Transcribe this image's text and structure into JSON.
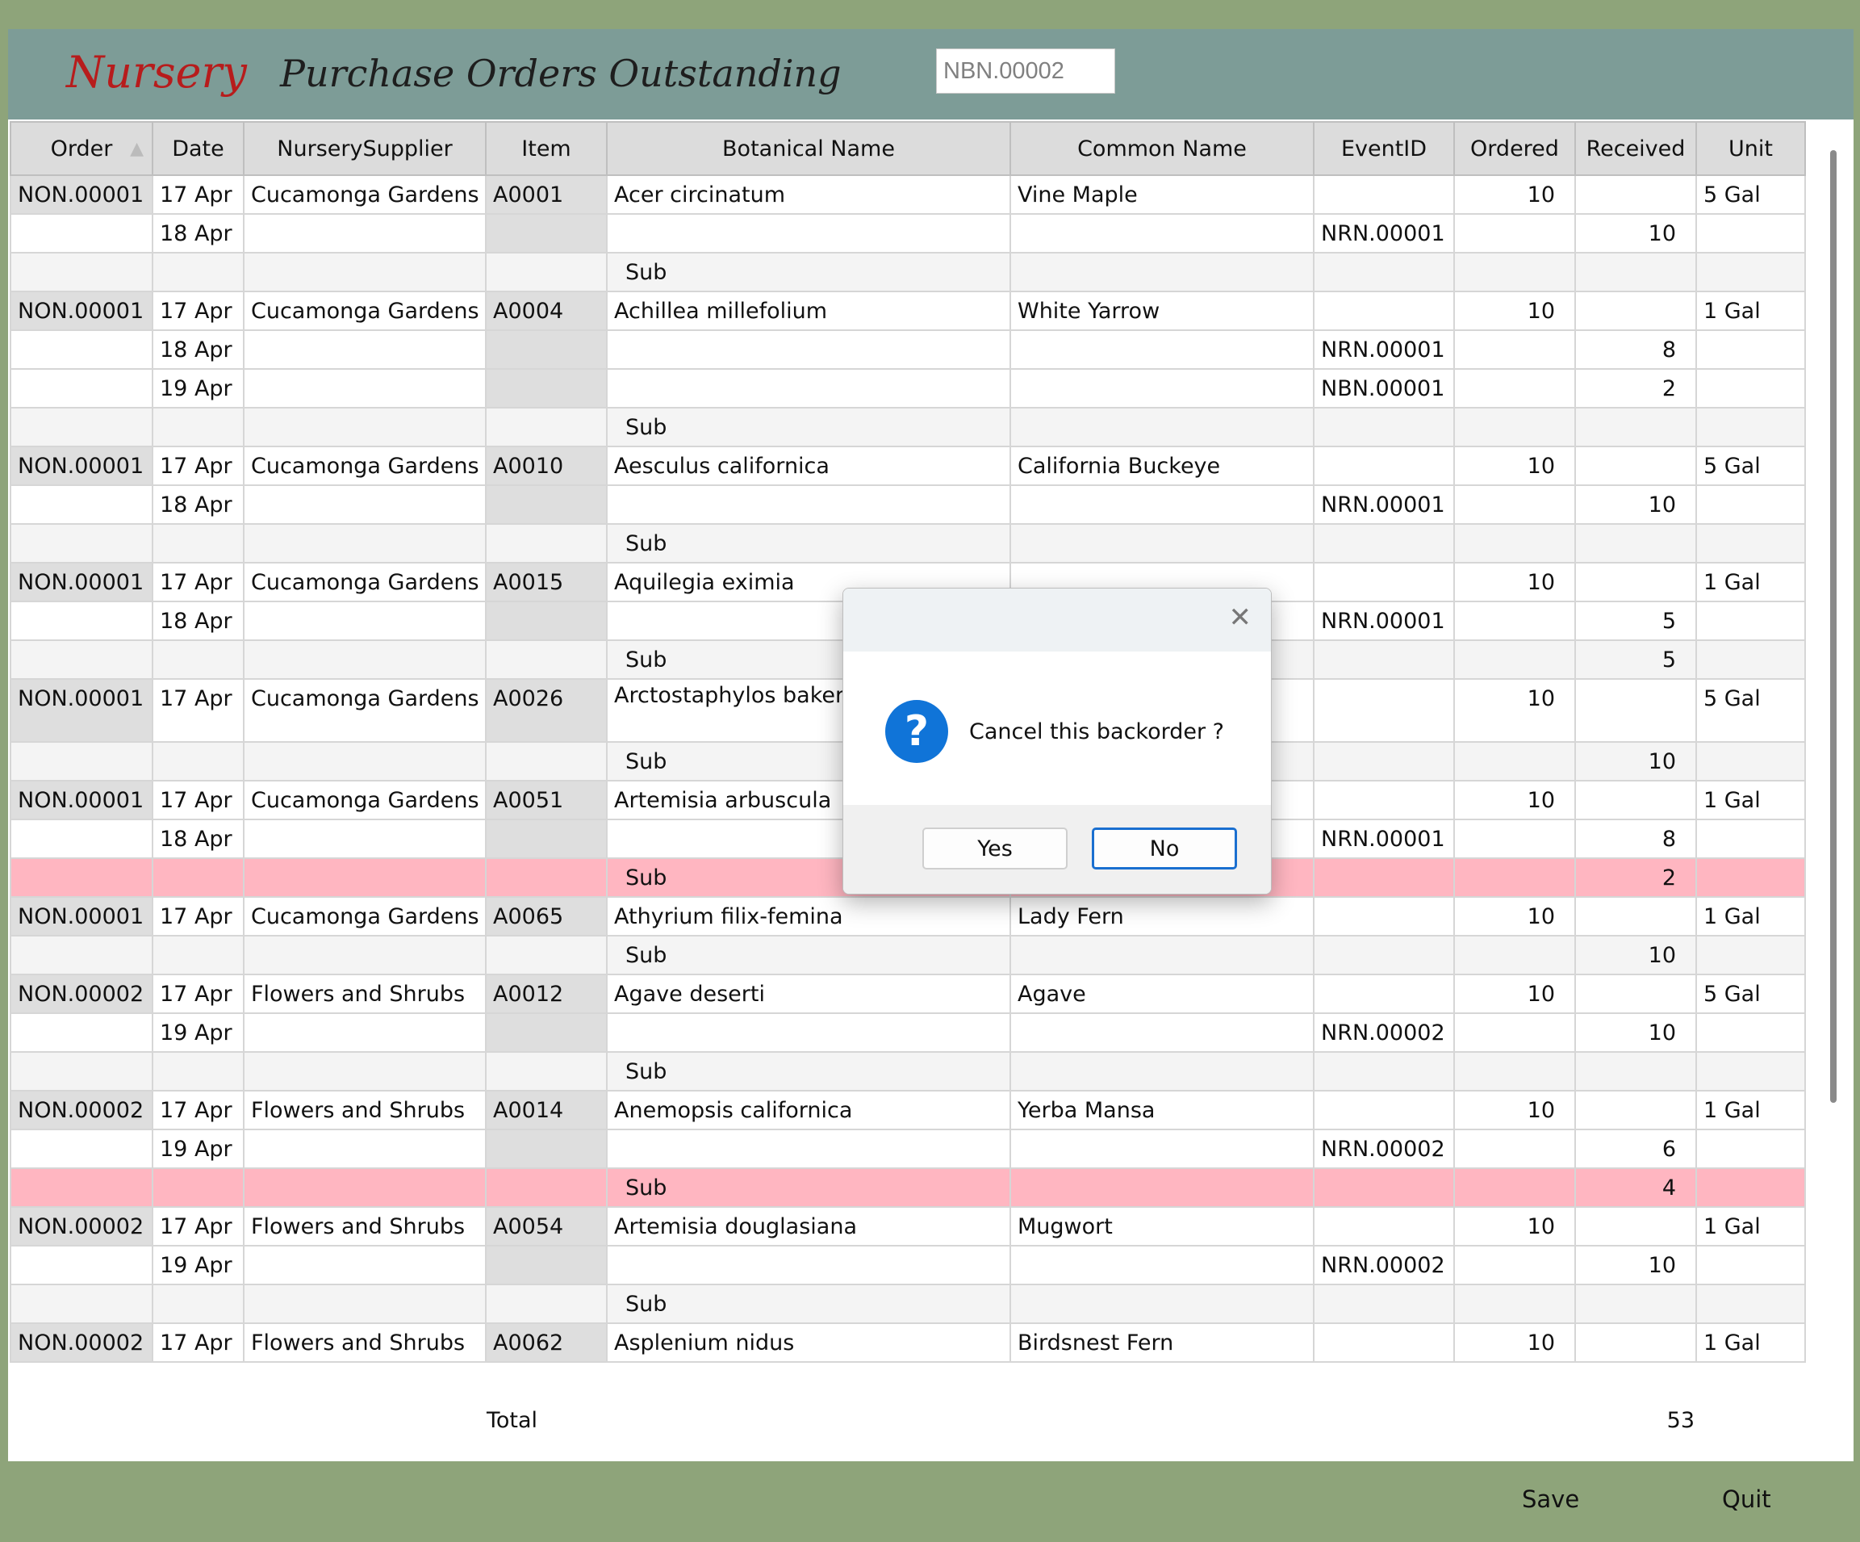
{
  "header": {
    "brand": "Nursery",
    "title": "Purchase Orders Outstanding",
    "ref_value": "NBN.00002"
  },
  "columns": [
    "Order",
    "Date",
    "NurserySupplier",
    "Item",
    "Botanical Name",
    "Common Name",
    "EventID",
    "Ordered",
    "Received",
    "Unit"
  ],
  "rows": [
    {
      "order": "NON.00001",
      "date": "17 Apr",
      "supplier": "Cucamonga Gardens",
      "item": "A0001",
      "botanical": "Acer circinatum",
      "common": "Vine Maple",
      "event": "",
      "ordered": "10",
      "received": "",
      "unit": "5 Gal"
    },
    {
      "order": "",
      "date": "18 Apr",
      "supplier": "",
      "item": "",
      "botanical": "",
      "common": "",
      "event": "NRN.00001",
      "ordered": "",
      "received": "10",
      "unit": ""
    },
    {
      "order": "",
      "date": "",
      "supplier": "",
      "item": "",
      "botanical": "Sub",
      "common": "",
      "event": "",
      "ordered": "",
      "received": "",
      "unit": ""
    },
    {
      "order": "NON.00001",
      "date": "17 Apr",
      "supplier": "Cucamonga Gardens",
      "item": "A0004",
      "botanical": "Achillea millefolium",
      "common": "White Yarrow",
      "event": "",
      "ordered": "10",
      "received": "",
      "unit": "1 Gal"
    },
    {
      "order": "",
      "date": "18 Apr",
      "supplier": "",
      "item": "",
      "botanical": "",
      "common": "",
      "event": "NRN.00001",
      "ordered": "",
      "received": "8",
      "unit": ""
    },
    {
      "order": "",
      "date": "19 Apr",
      "supplier": "",
      "item": "",
      "botanical": "",
      "common": "",
      "event": "NBN.00001",
      "ordered": "",
      "received": "2",
      "unit": ""
    },
    {
      "order": "",
      "date": "",
      "supplier": "",
      "item": "",
      "botanical": "Sub",
      "common": "",
      "event": "",
      "ordered": "",
      "received": "",
      "unit": ""
    },
    {
      "order": "NON.00001",
      "date": "17 Apr",
      "supplier": "Cucamonga Gardens",
      "item": "A0010",
      "botanical": "Aesculus californica",
      "common": "California Buckeye",
      "event": "",
      "ordered": "10",
      "received": "",
      "unit": "5 Gal"
    },
    {
      "order": "",
      "date": "18 Apr",
      "supplier": "",
      "item": "",
      "botanical": "",
      "common": "",
      "event": "NRN.00001",
      "ordered": "",
      "received": "10",
      "unit": ""
    },
    {
      "order": "",
      "date": "",
      "supplier": "",
      "item": "",
      "botanical": "Sub",
      "common": "",
      "event": "",
      "ordered": "",
      "received": "",
      "unit": ""
    },
    {
      "order": "NON.00001",
      "date": "17 Apr",
      "supplier": "Cucamonga Gardens",
      "item": "A0015",
      "botanical": "Aquilegia eximia",
      "common": "",
      "event": "",
      "ordered": "10",
      "received": "",
      "unit": "1 Gal"
    },
    {
      "order": "",
      "date": "18 Apr",
      "supplier": "",
      "item": "",
      "botanical": "",
      "common": "",
      "event": "NRN.00001",
      "ordered": "",
      "received": "5",
      "unit": ""
    },
    {
      "order": "",
      "date": "",
      "supplier": "",
      "item": "",
      "botanical": "Sub",
      "common": "",
      "event": "",
      "ordered": "",
      "received": "5",
      "unit": ""
    },
    {
      "order": "NON.00001",
      "date": "17 Apr",
      "supplier": "Cucamonga Gardens",
      "item": "A0026",
      "botanical": "Arctostaphylos bakeri Edmunds'",
      "common": "",
      "event": "",
      "ordered": "10",
      "received": "",
      "unit": "5 Gal"
    },
    {
      "order": "",
      "date": "",
      "supplier": "",
      "item": "",
      "botanical": "Sub",
      "common": "",
      "event": "",
      "ordered": "",
      "received": "10",
      "unit": ""
    },
    {
      "order": "NON.00001",
      "date": "17 Apr",
      "supplier": "Cucamonga Gardens",
      "item": "A0051",
      "botanical": "Artemisia arbuscula",
      "common": "",
      "event": "",
      "ordered": "10",
      "received": "",
      "unit": "1 Gal"
    },
    {
      "order": "",
      "date": "18 Apr",
      "supplier": "",
      "item": "",
      "botanical": "",
      "common": "",
      "event": "NRN.00001",
      "ordered": "",
      "received": "8",
      "unit": ""
    },
    {
      "order": "",
      "date": "",
      "supplier": "",
      "item": "",
      "botanical": "Sub",
      "common": "",
      "event": "",
      "ordered": "",
      "received": "2",
      "unit": ""
    },
    {
      "order": "NON.00001",
      "date": "17 Apr",
      "supplier": "Cucamonga Gardens",
      "item": "A0065",
      "botanical": "Athyrium filix-femina",
      "common": "Lady Fern",
      "event": "",
      "ordered": "10",
      "received": "",
      "unit": "1 Gal"
    },
    {
      "order": "",
      "date": "",
      "supplier": "",
      "item": "",
      "botanical": "Sub",
      "common": "",
      "event": "",
      "ordered": "",
      "received": "10",
      "unit": ""
    },
    {
      "order": "NON.00002",
      "date": "17 Apr",
      "supplier": "Flowers and Shrubs",
      "item": "A0012",
      "botanical": "Agave deserti",
      "common": "Agave",
      "event": "",
      "ordered": "10",
      "received": "",
      "unit": "5 Gal"
    },
    {
      "order": "",
      "date": "19 Apr",
      "supplier": "",
      "item": "",
      "botanical": "",
      "common": "",
      "event": "NRN.00002",
      "ordered": "",
      "received": "10",
      "unit": ""
    },
    {
      "order": "",
      "date": "",
      "supplier": "",
      "item": "",
      "botanical": "Sub",
      "common": "",
      "event": "",
      "ordered": "",
      "received": "",
      "unit": ""
    },
    {
      "order": "NON.00002",
      "date": "17 Apr",
      "supplier": "Flowers and Shrubs",
      "item": "A0014",
      "botanical": "Anemopsis californica",
      "common": "Yerba Mansa",
      "event": "",
      "ordered": "10",
      "received": "",
      "unit": "1 Gal"
    },
    {
      "order": "",
      "date": "19 Apr",
      "supplier": "",
      "item": "",
      "botanical": "",
      "common": "",
      "event": "NRN.00002",
      "ordered": "",
      "received": "6",
      "unit": ""
    },
    {
      "order": "",
      "date": "",
      "supplier": "",
      "item": "",
      "botanical": "Sub",
      "common": "",
      "event": "",
      "ordered": "",
      "received": "4",
      "unit": ""
    },
    {
      "order": "NON.00002",
      "date": "17 Apr",
      "supplier": "Flowers and Shrubs",
      "item": "A0054",
      "botanical": "Artemisia douglasiana",
      "common": "Mugwort",
      "event": "",
      "ordered": "10",
      "received": "",
      "unit": "1 Gal"
    },
    {
      "order": "",
      "date": "19 Apr",
      "supplier": "",
      "item": "",
      "botanical": "",
      "common": "",
      "event": "NRN.00002",
      "ordered": "",
      "received": "10",
      "unit": ""
    },
    {
      "order": "",
      "date": "",
      "supplier": "",
      "item": "",
      "botanical": "Sub",
      "common": "",
      "event": "",
      "ordered": "",
      "received": "",
      "unit": ""
    },
    {
      "order": "NON.00002",
      "date": "17 Apr",
      "supplier": "Flowers and Shrubs",
      "item": "A0062",
      "botanical": "Asplenium nidus",
      "common": "Birdsnest Fern",
      "event": "",
      "ordered": "10",
      "received": "",
      "unit": "1 Gal"
    }
  ],
  "highlight_rows": [
    17,
    25
  ],
  "footer": {
    "total_label": "Total",
    "total_value": "53"
  },
  "buttons": {
    "save": "Save",
    "quit": "Quit"
  },
  "dialog": {
    "message": "Cancel this backorder ?",
    "yes": "Yes",
    "no": "No",
    "icon": "question-icon",
    "close_icon": "close-icon"
  },
  "colors": {
    "header_bg": "#7d9c97",
    "frame_bg": "#8ea47a",
    "highlight": "#ffb6c1",
    "brand": "#b71c1c",
    "accent": "#1a6fd0"
  }
}
